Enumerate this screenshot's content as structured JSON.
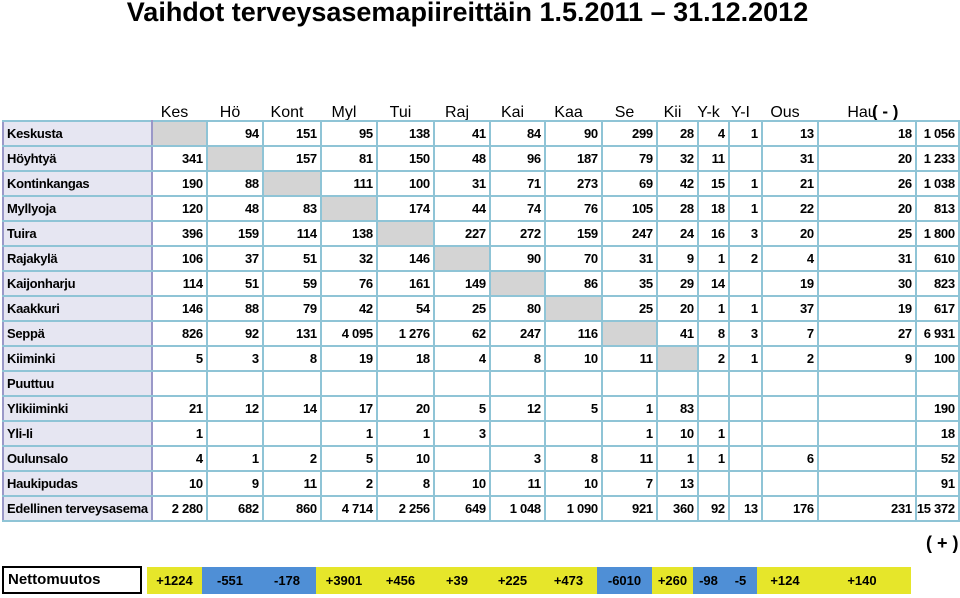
{
  "title": "Vaihdot terveysasemapiireittäin 1.5.2011 – 31.12.2012",
  "columns": [
    "Kes",
    "Hö",
    "Kont",
    "Myl",
    "Tui",
    "Raj",
    "Kai",
    "Kaa",
    "Se",
    "Kii",
    "Y-k",
    "Y-I",
    "Ous",
    "Hau"
  ],
  "minus_label": "( - )",
  "plus_label": "( + )",
  "rows": [
    {
      "name": "Keskusta",
      "cells": [
        "",
        "94",
        "151",
        "95",
        "138",
        "41",
        "84",
        "90",
        "299",
        "28",
        "4",
        "1",
        "13",
        "18",
        "1 056"
      ]
    },
    {
      "name": "Höyhtyä",
      "cells": [
        "341",
        "",
        "157",
        "81",
        "150",
        "48",
        "96",
        "187",
        "79",
        "32",
        "11",
        "",
        "31",
        "20",
        "1 233"
      ]
    },
    {
      "name": "Kontinkangas",
      "cells": [
        "190",
        "88",
        "",
        "111",
        "100",
        "31",
        "71",
        "273",
        "69",
        "42",
        "15",
        "1",
        "21",
        "26",
        "1 038"
      ]
    },
    {
      "name": "Myllyoja",
      "cells": [
        "120",
        "48",
        "83",
        "",
        "174",
        "44",
        "74",
        "76",
        "105",
        "28",
        "18",
        "1",
        "22",
        "20",
        "813"
      ]
    },
    {
      "name": "Tuira",
      "cells": [
        "396",
        "159",
        "114",
        "138",
        "",
        "227",
        "272",
        "159",
        "247",
        "24",
        "16",
        "3",
        "20",
        "25",
        "1 800"
      ]
    },
    {
      "name": "Rajakylä",
      "cells": [
        "106",
        "37",
        "51",
        "32",
        "146",
        "",
        "90",
        "70",
        "31",
        "9",
        "1",
        "2",
        "4",
        "31",
        "610"
      ]
    },
    {
      "name": "Kaijonharju",
      "cells": [
        "114",
        "51",
        "59",
        "76",
        "161",
        "149",
        "",
        "86",
        "35",
        "29",
        "14",
        "",
        "19",
        "30",
        "823"
      ]
    },
    {
      "name": "Kaakkuri",
      "cells": [
        "146",
        "88",
        "79",
        "42",
        "54",
        "25",
        "80",
        "",
        "25",
        "20",
        "1",
        "1",
        "37",
        "19",
        "617"
      ]
    },
    {
      "name": "Seppä",
      "cells": [
        "826",
        "92",
        "131",
        "4 095",
        "1 276",
        "62",
        "247",
        "116",
        "",
        "41",
        "8",
        "3",
        "7",
        "27",
        "6 931"
      ]
    },
    {
      "name": "Kiiminki",
      "cells": [
        "5",
        "3",
        "8",
        "19",
        "18",
        "4",
        "8",
        "10",
        "11",
        "",
        "2",
        "1",
        "2",
        "9",
        "100"
      ]
    },
    {
      "name": "Puuttuu",
      "cells": [
        "",
        "",
        "",
        "",
        "",
        "",
        "",
        "",
        "",
        "",
        "",
        "",
        "",
        "",
        ""
      ]
    },
    {
      "name": "Ylikiiminki",
      "cells": [
        "21",
        "12",
        "14",
        "17",
        "20",
        "5",
        "12",
        "5",
        "1",
        "83",
        "",
        "",
        "",
        "",
        "190"
      ]
    },
    {
      "name": "Yli-Ii",
      "cells": [
        "1",
        "",
        "",
        "1",
        "1",
        "3",
        "",
        "",
        "1",
        "10",
        "1",
        "",
        "",
        "",
        "18"
      ]
    },
    {
      "name": "Oulunsalo",
      "cells": [
        "4",
        "1",
        "2",
        "5",
        "10",
        "",
        "3",
        "8",
        "11",
        "1",
        "1",
        "",
        "6",
        "",
        "52"
      ]
    },
    {
      "name": "Haukipudas",
      "cells": [
        "10",
        "9",
        "11",
        "2",
        "8",
        "10",
        "11",
        "10",
        "7",
        "13",
        "",
        "",
        "",
        "",
        "91"
      ]
    },
    {
      "name": "Edellinen terveysasema",
      "cells": [
        "2 280",
        "682",
        "860",
        "4 714",
        "2 256",
        "649",
        "1 048",
        "1 090",
        "921",
        "360",
        "92",
        "13",
        "176",
        "231",
        "15 372"
      ]
    }
  ],
  "netto": {
    "label": "Nettomuutos",
    "values": [
      "+1224",
      "-551",
      "-178",
      "+3901",
      "+456",
      "+39",
      "+225",
      "+473",
      "-6010",
      "+260",
      "-98",
      "-5",
      "+124",
      "+140"
    ],
    "colors": {
      "positive": "#e6e62a",
      "negative": "#4f8fd6"
    }
  }
}
